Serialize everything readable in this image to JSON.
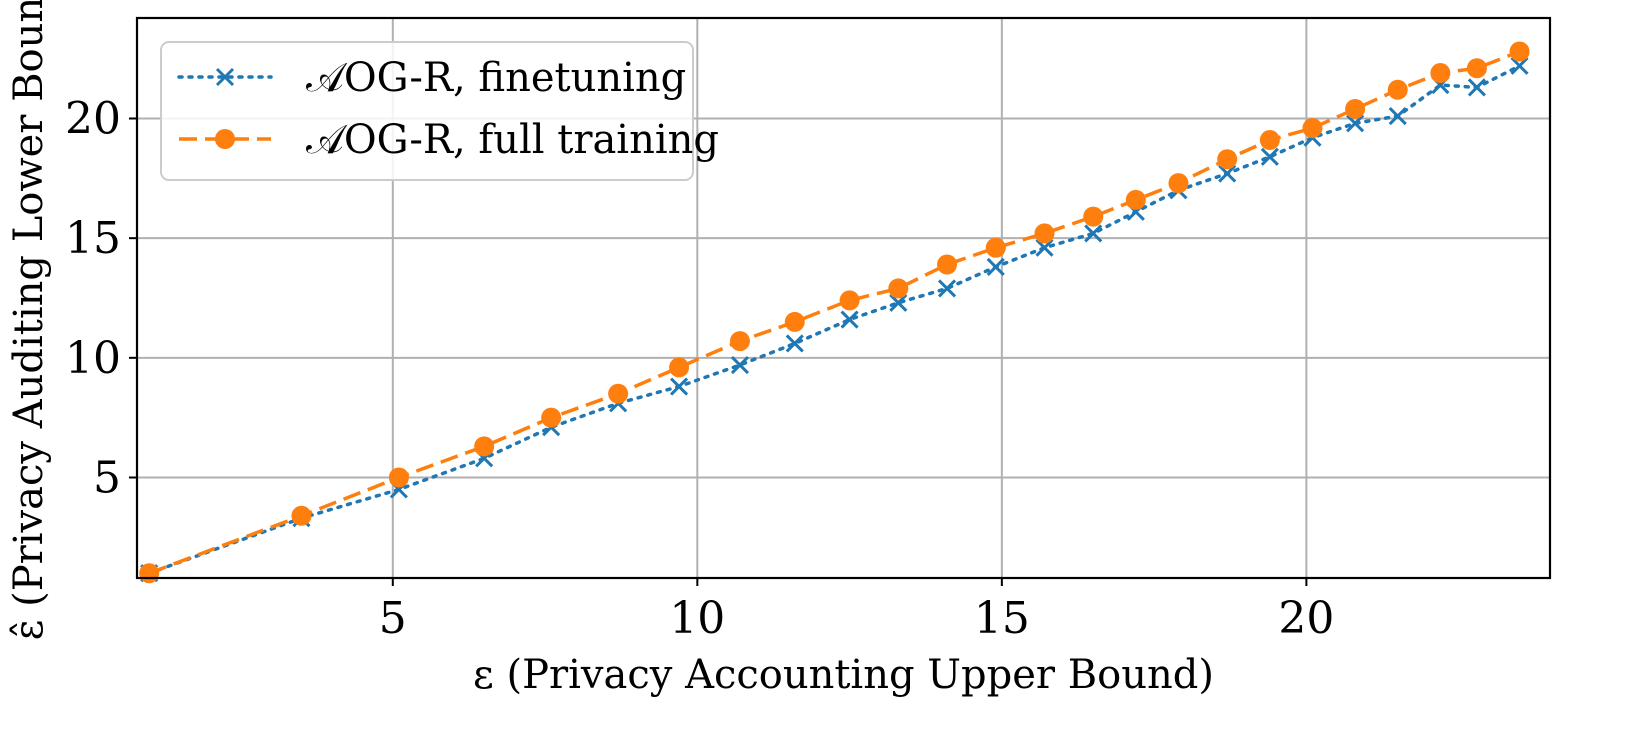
{
  "chart_data": {
    "type": "line",
    "xlabel": "ε (Privacy Accounting Upper Bound)",
    "ylabel": "ε̂ (Privacy Auditing Lower Bound)",
    "xlim": [
      0.8,
      24
    ],
    "ylim": [
      0.8,
      24.2
    ],
    "xticks": [
      5,
      10,
      15,
      20
    ],
    "yticks": [
      5,
      10,
      15,
      20
    ],
    "grid": true,
    "legend_position": "top-left",
    "series": [
      {
        "name": "𝒜OG-R, finetuning",
        "color": "#1f77b4",
        "style": "dotted",
        "marker": "x",
        "x": [
          1.0,
          3.5,
          5.1,
          6.5,
          7.6,
          8.7,
          9.7,
          10.7,
          11.6,
          12.5,
          13.3,
          14.1,
          14.9,
          15.7,
          16.5,
          17.2,
          17.9,
          18.7,
          19.4,
          20.1,
          20.8,
          21.5,
          22.2,
          22.8,
          23.5
        ],
        "y": [
          1.0,
          3.3,
          4.5,
          5.8,
          7.1,
          8.1,
          8.8,
          9.7,
          10.6,
          11.6,
          12.3,
          12.9,
          13.8,
          14.6,
          15.2,
          16.1,
          17.0,
          17.7,
          18.4,
          19.2,
          19.8,
          20.1,
          21.4,
          21.3,
          22.2
        ]
      },
      {
        "name": "𝒜OG-R, full training",
        "color": "#ff7f0e",
        "style": "dashed",
        "marker": "o",
        "x": [
          1.0,
          3.5,
          5.1,
          6.5,
          7.6,
          8.7,
          9.7,
          10.7,
          11.6,
          12.5,
          13.3,
          14.1,
          14.9,
          15.7,
          16.5,
          17.2,
          17.9,
          18.7,
          19.4,
          20.1,
          20.8,
          21.5,
          22.2,
          22.8,
          23.5
        ],
        "y": [
          1.0,
          3.4,
          5.0,
          6.3,
          7.5,
          8.5,
          9.6,
          10.7,
          11.5,
          12.4,
          12.9,
          13.9,
          14.6,
          15.2,
          15.9,
          16.6,
          17.3,
          18.3,
          19.1,
          19.6,
          20.4,
          21.2,
          21.9,
          22.1,
          22.8
        ]
      }
    ]
  }
}
